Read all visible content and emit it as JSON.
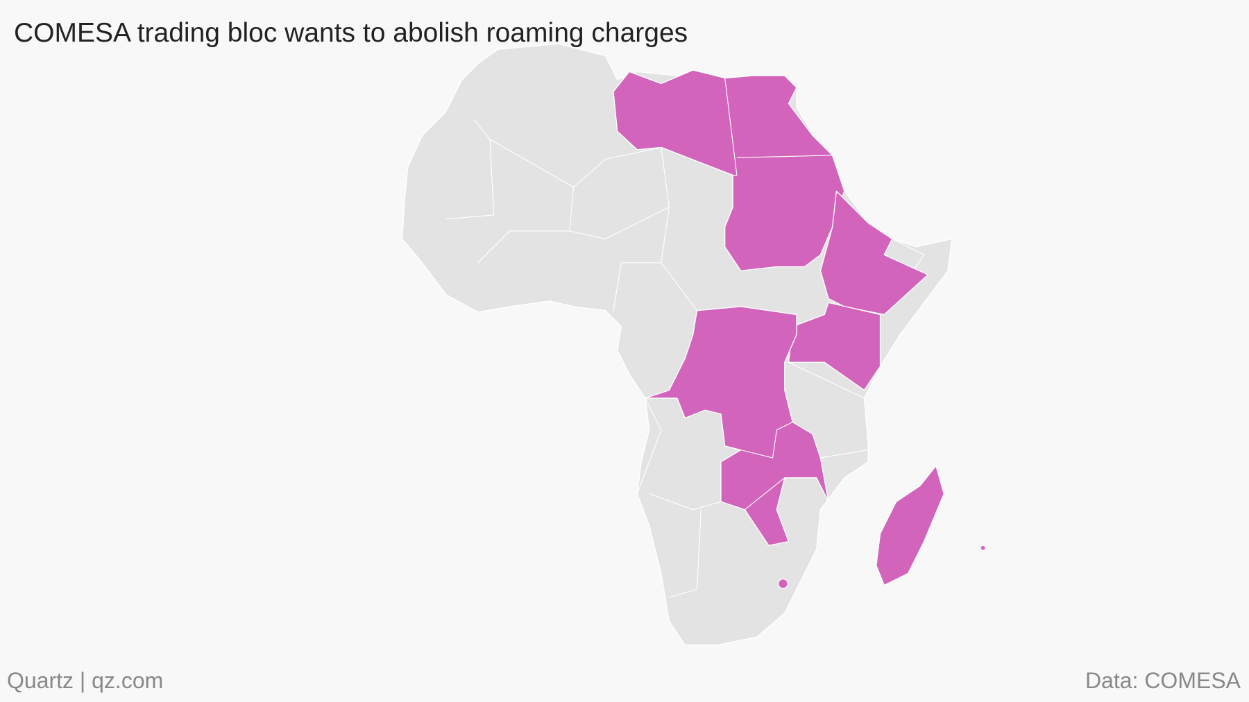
{
  "header": {
    "title": "COMESA trading bloc wants to abolish roaming charges"
  },
  "footer": {
    "credit": "Quartz | qz.com",
    "source": "Data: COMESA"
  }
}
